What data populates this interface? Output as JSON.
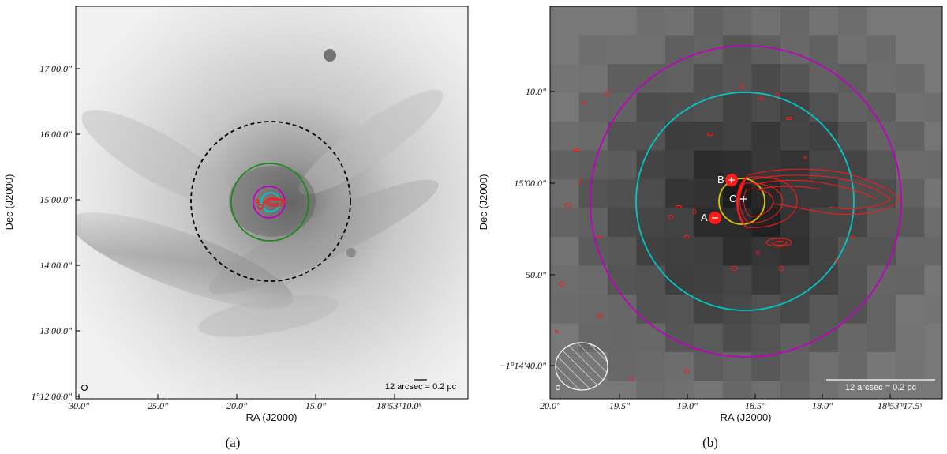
{
  "panel_a": {
    "caption": "(a)",
    "xlabel": "RA (J2000)",
    "ylabel": "Dec (J2000)",
    "xticks": [
      "30.0\"",
      "25.0\"",
      "20.0\"",
      "15.0\"",
      "18ʰ53ᵐ10.0ˢ"
    ],
    "yticks": [
      "17'00.0\"",
      "16'00.0\"",
      "15'00.0\"",
      "14'00.0\"",
      "13'00.0\"",
      "1°12'00.0\""
    ],
    "scalebar": "12 arcsec = 0.2 pc",
    "colors": {
      "circle_dashed": "#000000",
      "circle_green": "#1a8a1a",
      "circle_magenta": "#c000c0",
      "circle_cyan": "#00c8c8",
      "contours": "#ff1a1a"
    }
  },
  "panel_b": {
    "caption": "(b)",
    "xlabel": "RA (J2000)",
    "ylabel": "Dec (J2000)",
    "xticks": [
      "20.0\"",
      "19.5\"",
      "19.0\"",
      "18.5\"",
      "18.0\"",
      "18ʰ53ᵐ17.5ˢ"
    ],
    "yticks": [
      "10.0\"",
      "15'00.0\"",
      "50.0\"",
      "−1°14'40.0\""
    ],
    "scalebar": "12 arcsec = 0.2 pc",
    "sources": [
      "A",
      "B",
      "C"
    ],
    "colors": {
      "circle_magenta": "#c000c0",
      "circle_cyan": "#00c8c8",
      "circle_yellow": "#d8c800",
      "contours": "#ff1a1a",
      "beam": "#ffffff"
    }
  }
}
